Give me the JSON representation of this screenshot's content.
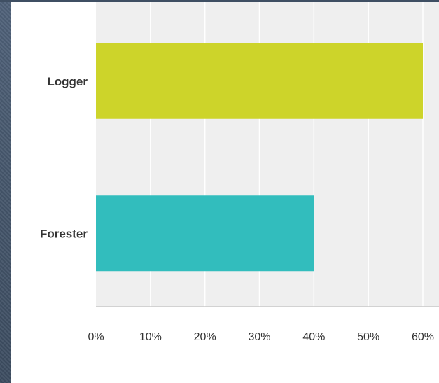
{
  "chart_data": {
    "type": "bar",
    "orientation": "horizontal",
    "title": "",
    "xlabel": "",
    "ylabel": "",
    "categories": [
      "Logger",
      "Forester"
    ],
    "values": [
      60,
      40
    ],
    "unit": "%",
    "xlim": [
      0,
      60
    ],
    "xticks": [
      "0%",
      "10%",
      "20%",
      "30%",
      "40%",
      "50%",
      "60%"
    ],
    "grid": true,
    "legend": "none",
    "colors": [
      "#cdd42a",
      "#32bdbd"
    ],
    "plot_background": "#efefef",
    "grid_color": "#ffffff"
  }
}
